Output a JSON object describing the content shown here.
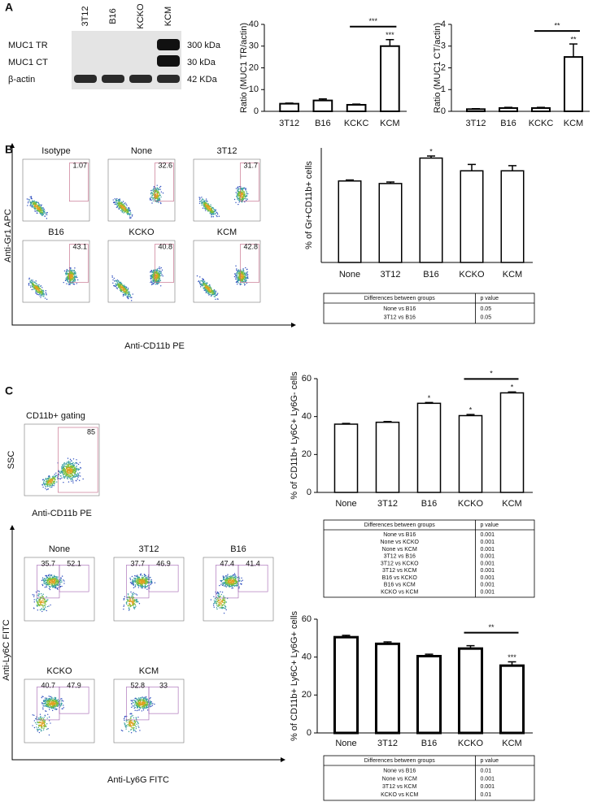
{
  "panel_labels": [
    "A",
    "B",
    "C"
  ],
  "blot": {
    "lanes": [
      "3T12",
      "B16",
      "KCKO",
      "KCM"
    ],
    "rows": [
      {
        "name": "MUC1 TR",
        "size": "300 kDa"
      },
      {
        "name": "MUC1 CT",
        "size": "30 kDa"
      },
      {
        "name": "β-actin",
        "size": "42 KDa"
      }
    ]
  },
  "flow_b": {
    "y_label": "Anti-Gr1 APC",
    "x_label": "Anti-CD11b PE",
    "plots": [
      {
        "title": "Isotype",
        "gate": 1.07
      },
      {
        "title": "None",
        "gate": 32.6
      },
      {
        "title": "3T12",
        "gate": 31.7
      },
      {
        "title": "B16",
        "gate": 43.1
      },
      {
        "title": "KCKO",
        "gate": 40.8
      },
      {
        "title": "KCM",
        "gate": 42.8
      }
    ]
  },
  "gating": {
    "title": "CD11b+ gating",
    "gate": 85,
    "y_label": "SSC",
    "x_label": "Anti-CD11b PE"
  },
  "flow_c": {
    "y_label": "Anti-Ly6C FITC",
    "x_label": "Anti-Ly6G FITC",
    "plots": [
      {
        "title": "None",
        "gates": [
          35.7,
          52.1
        ]
      },
      {
        "title": "3T12",
        "gates": [
          37.7,
          46.9
        ]
      },
      {
        "title": "B16",
        "gates": [
          47.4,
          41.4
        ]
      },
      {
        "title": "KCKO",
        "gates": [
          40.7,
          47.9
        ]
      },
      {
        "title": "KCM",
        "gates": [
          52.8,
          33
        ]
      }
    ]
  },
  "chart_data": [
    {
      "type": "bar",
      "y_label": "Ratio (MUC1 TR/actin)",
      "categories": [
        "3T12",
        "B16",
        "KCKC",
        "KCM"
      ],
      "values": [
        3.5,
        5,
        3,
        30
      ],
      "errors": [
        0.3,
        0.7,
        0.3,
        3
      ],
      "bar_labels": [
        null,
        null,
        null,
        "***"
      ],
      "brackets": [
        {
          "from": "KCKC",
          "to": "KCM",
          "text": "***"
        }
      ],
      "ylim": [
        0,
        40
      ],
      "yticks": [
        0,
        10,
        20,
        30,
        40
      ],
      "color": "#ffffff"
    },
    {
      "type": "bar",
      "y_label": "Ratio (MUC1 CT/actin)",
      "categories": [
        "3T12",
        "B16",
        "KCKC",
        "KCM"
      ],
      "values": [
        0.1,
        0.15,
        0.15,
        2.5
      ],
      "errors": [
        0.02,
        0.03,
        0.03,
        0.6
      ],
      "bar_labels": [
        null,
        null,
        null,
        "**"
      ],
      "brackets": [
        {
          "from": "KCKC",
          "to": "KCM",
          "text": "**"
        }
      ],
      "ylim": [
        0,
        4
      ],
      "yticks": [
        0,
        1,
        2,
        3,
        4
      ],
      "color": "#ffffff"
    },
    {
      "type": "bar",
      "y_label": "% of Gr+CD11b+ cells",
      "categories": [
        "None",
        "3T12",
        "B16",
        "KCKO",
        "KCM"
      ],
      "values": [
        32,
        31,
        41,
        36,
        36
      ],
      "errors": [
        0.4,
        0.6,
        0.8,
        2.5,
        2
      ],
      "bar_labels": [
        null,
        null,
        "*",
        null,
        null
      ],
      "ylim": [
        0,
        45
      ],
      "color": "#ffffff",
      "table": {
        "header": [
          "Differences between groups",
          "p value"
        ],
        "rows": [
          [
            "None vs B16",
            0.05
          ],
          [
            "3T12 vs B16",
            0.05
          ]
        ]
      }
    },
    {
      "type": "bar",
      "y_label": "% of CD11b+ Ly6C+ Ly6G- cells",
      "categories": [
        "None",
        "3T12",
        "B16",
        "KCKO",
        "KCM"
      ],
      "values": [
        36,
        37,
        47,
        40.5,
        52.5
      ],
      "errors": [
        0.4,
        0.4,
        0.4,
        0.6,
        0.5
      ],
      "bar_labels": [
        null,
        null,
        "*",
        "*",
        "*"
      ],
      "brackets": [
        {
          "from": "KCKO",
          "to": "KCM",
          "text": "*"
        }
      ],
      "ylim": [
        0,
        60
      ],
      "yticks": [
        0,
        20,
        40,
        60
      ],
      "color": "#ffffff",
      "table": {
        "header": [
          "Differences between groups",
          "p value"
        ],
        "rows": [
          [
            "None vs B16",
            0.001
          ],
          [
            "None vs KCKO",
            0.001
          ],
          [
            "None vs KCM",
            0.001
          ],
          [
            "3T12 vs B16",
            0.001
          ],
          [
            "3T12 vs KCKO",
            0.001
          ],
          [
            "3T12 vs KCM",
            0.001
          ],
          [
            "B16 vs KCKO",
            0.001
          ],
          [
            "B16 vs KCM",
            0.001
          ],
          [
            "KCKO vs KCM",
            0.001
          ]
        ]
      }
    },
    {
      "type": "bar",
      "y_label": "% of CD11b+ Ly6C+ Ly6G+ cells",
      "categories": [
        "None",
        "3T12",
        "B16",
        "KCKO",
        "KCM"
      ],
      "values": [
        50.5,
        47,
        40.5,
        44.5,
        35.5
      ],
      "errors": [
        1,
        1,
        1,
        1.5,
        2
      ],
      "bar_labels": [
        null,
        null,
        null,
        null,
        "***"
      ],
      "brackets": [
        {
          "from": "KCKO",
          "to": "KCM",
          "text": "**"
        }
      ],
      "ylim": [
        0,
        60
      ],
      "yticks": [
        0,
        20,
        40,
        60
      ],
      "color": "#ffffff",
      "table": {
        "header": [
          "Differences between groups",
          "p value"
        ],
        "rows": [
          [
            "None vs B16",
            0.01
          ],
          [
            "None vs KCM",
            0.001
          ],
          [
            "3T12 vs KCM",
            0.001
          ],
          [
            "KCKO vs KCM",
            0.01
          ]
        ]
      }
    }
  ]
}
